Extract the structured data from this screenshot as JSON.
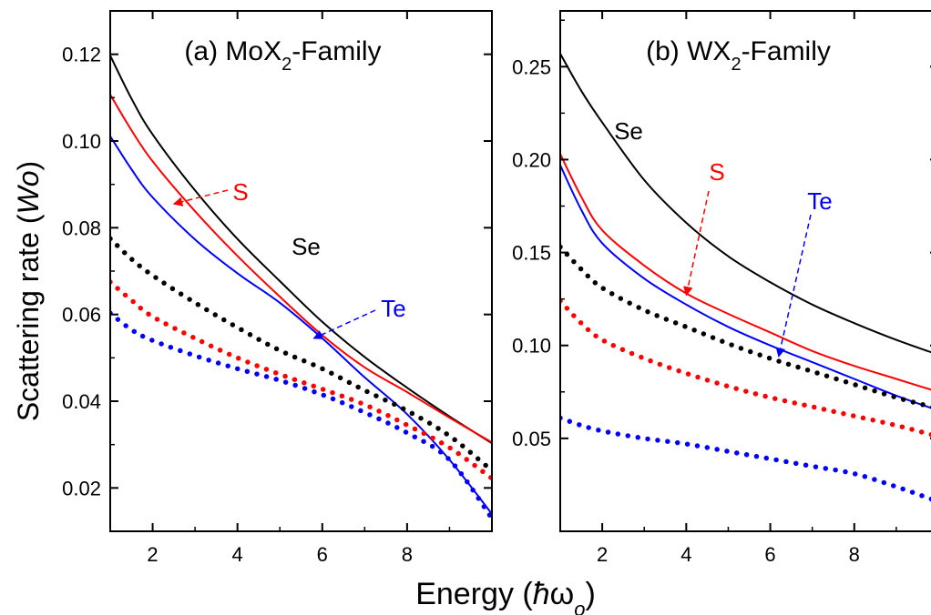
{
  "figure": {
    "ylabel": "Scattering rate (Wo)",
    "xlabel": "Energy (ħω_o)"
  },
  "chart_data": [
    {
      "type": "line",
      "title": "(a) MoX2-Family",
      "xlim": [
        1,
        10
      ],
      "ylim": [
        0.01,
        0.13
      ],
      "xticks": [
        2,
        4,
        6,
        8
      ],
      "yticks": [
        0.02,
        0.04,
        0.06,
        0.08,
        0.1,
        0.12
      ],
      "ytick_labels": [
        "0.02",
        "0.04",
        "0.06",
        "0.08",
        "0.10",
        "0.12"
      ],
      "grid": false,
      "x": [
        1,
        1.5,
        2,
        3,
        4,
        5,
        6,
        7,
        8,
        9,
        10
      ],
      "series": [
        {
          "name": "Se",
          "color": "#000000",
          "style": "solid",
          "values": [
            0.1197,
            0.1098,
            0.1015,
            0.0886,
            0.0774,
            0.0677,
            0.0583,
            0.0502,
            0.0431,
            0.0365,
            0.0303
          ]
        },
        {
          "name": "S",
          "color": "#ff0000",
          "style": "solid",
          "values": [
            0.1107,
            0.1025,
            0.0953,
            0.0838,
            0.0735,
            0.0641,
            0.0552,
            0.0478,
            0.0421,
            0.0362,
            0.0305
          ]
        },
        {
          "name": "Te",
          "color": "#0000ff",
          "style": "solid",
          "values": [
            0.1011,
            0.0935,
            0.087,
            0.0773,
            0.0695,
            0.0627,
            0.0545,
            0.0455,
            0.037,
            0.0265,
            0.014
          ]
        },
        {
          "color": "#000000",
          "style": "dotted",
          "values": [
            0.0775,
            0.0728,
            0.069,
            0.0627,
            0.057,
            0.0517,
            0.0475,
            0.0425,
            0.0378,
            0.032,
            0.024
          ]
        },
        {
          "color": "#ff0000",
          "style": "dotted",
          "values": [
            0.0675,
            0.0633,
            0.0595,
            0.0545,
            0.05,
            0.0462,
            0.0428,
            0.0392,
            0.0345,
            0.0293,
            0.0222
          ]
        },
        {
          "color": "#0000ff",
          "style": "dotted",
          "values": [
            0.0603,
            0.0565,
            0.054,
            0.0505,
            0.0475,
            0.0448,
            0.0415,
            0.0374,
            0.0327,
            0.0265,
            0.013
          ]
        }
      ],
      "annotations": [
        {
          "text": "S",
          "color": "#ff0000",
          "arrow_to": [
            2.5,
            0.0855
          ]
        },
        {
          "text": "Se",
          "color": "#000000"
        },
        {
          "text": "Te",
          "color": "#0000ff",
          "arrow_to": [
            5.8,
            0.0545
          ]
        }
      ]
    },
    {
      "type": "line",
      "title": "(b) WX2-Family",
      "xlim": [
        1,
        10
      ],
      "ylim": [
        0,
        0.28
      ],
      "xticks": [
        2,
        4,
        6,
        8
      ],
      "yticks": [
        0.05,
        0.1,
        0.15,
        0.2,
        0.25
      ],
      "ytick_labels": [
        "0.05",
        "0.10",
        "0.15",
        "0.20",
        "0.25"
      ],
      "grid": false,
      "x": [
        1,
        1.5,
        2,
        3,
        4,
        5,
        6,
        7,
        8,
        9,
        10
      ],
      "series": [
        {
          "name": "Se",
          "color": "#000000",
          "style": "solid",
          "values": [
            0.257,
            0.237,
            0.22,
            0.189,
            0.166,
            0.148,
            0.134,
            0.122,
            0.112,
            0.103,
            0.095
          ]
        },
        {
          "name": "S",
          "color": "#ff0000",
          "style": "solid",
          "values": [
            0.203,
            0.18,
            0.162,
            0.143,
            0.128,
            0.117,
            0.107,
            0.097,
            0.089,
            0.082,
            0.075
          ]
        },
        {
          "name": "Te",
          "color": "#0000ff",
          "style": "solid",
          "values": [
            0.197,
            0.173,
            0.155,
            0.136,
            0.122,
            0.11,
            0.1,
            0.091,
            0.082,
            0.073,
            0.065
          ]
        },
        {
          "color": "#000000",
          "style": "dotted",
          "values": [
            0.153,
            0.141,
            0.131,
            0.119,
            0.11,
            0.101,
            0.093,
            0.086,
            0.079,
            0.072,
            0.066
          ]
        },
        {
          "color": "#ff0000",
          "style": "dotted",
          "values": [
            0.124,
            0.112,
            0.103,
            0.093,
            0.085,
            0.078,
            0.072,
            0.067,
            0.062,
            0.057,
            0.051
          ]
        },
        {
          "color": "#0000ff",
          "style": "dotted",
          "values": [
            0.061,
            0.057,
            0.054,
            0.05,
            0.047,
            0.043,
            0.039,
            0.035,
            0.031,
            0.024,
            0.016
          ]
        }
      ],
      "annotations": [
        {
          "text": "Se",
          "color": "#000000"
        },
        {
          "text": "S",
          "color": "#ff0000",
          "arrow_to": [
            4.0,
            0.127
          ]
        },
        {
          "text": "Te",
          "color": "#0000ff",
          "arrow_to": [
            6.2,
            0.094
          ]
        }
      ]
    }
  ]
}
